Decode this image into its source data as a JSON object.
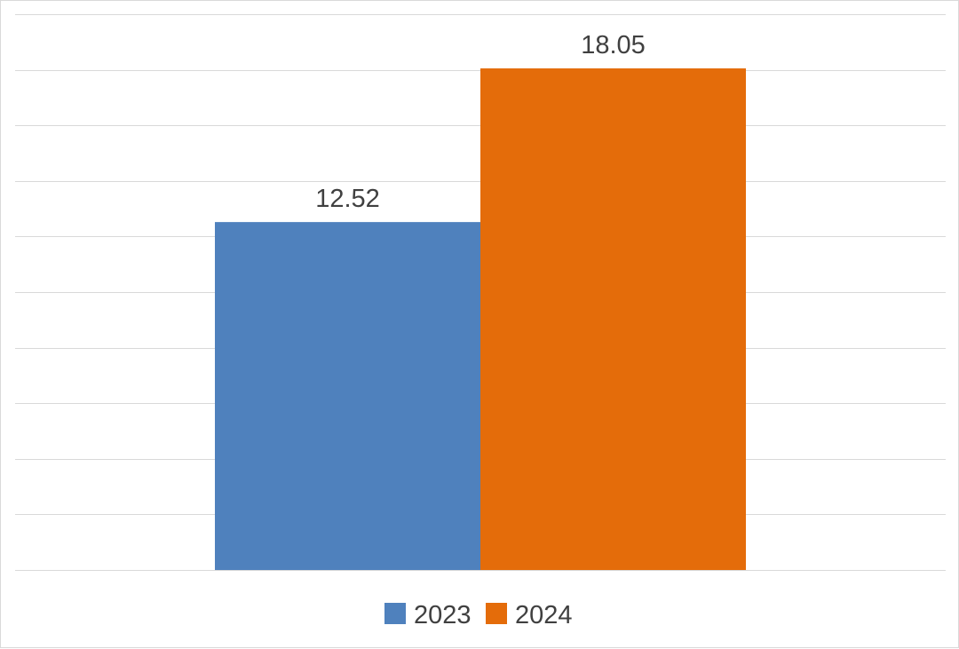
{
  "chart_data": {
    "type": "bar",
    "categories": [
      ""
    ],
    "series": [
      {
        "name": "2023",
        "values": [
          12.52
        ],
        "color": "#4f81bd"
      },
      {
        "name": "2024",
        "values": [
          18.05
        ],
        "color": "#e46c0a"
      }
    ],
    "ylim": [
      0,
      20
    ],
    "grid": true,
    "legend": "bottom",
    "data_labels": true
  }
}
